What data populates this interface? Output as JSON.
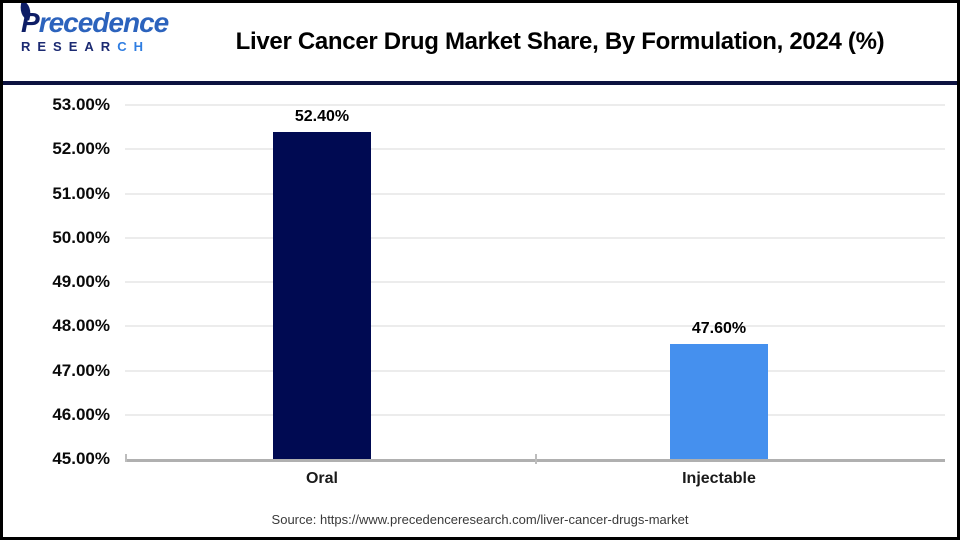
{
  "header": {
    "logo": {
      "name_initial": "P",
      "name_rest": "recedence",
      "sub_navy": "RESEAR",
      "sub_blue": "CH"
    },
    "title": "Liver Cancer Drug Market Share, By Formulation, 2024 (%)"
  },
  "chart_data": {
    "type": "bar",
    "title": "Liver Cancer Drug Market Share, By Formulation, 2024 (%)",
    "categories": [
      "Oral",
      "Injectable"
    ],
    "values": [
      52.4,
      47.6
    ],
    "value_labels": [
      "52.40%",
      "47.60%"
    ],
    "bar_colors": [
      "#000a52",
      "#4590ee"
    ],
    "xlabel": "",
    "ylabel": "",
    "ylim": [
      45,
      53
    ],
    "ytick_step": 1,
    "ytick_labels": [
      "45.00%",
      "46.00%",
      "47.00%",
      "48.00%",
      "49.00%",
      "50.00%",
      "51.00%",
      "52.00%",
      "53.00%"
    ],
    "grid": true,
    "legend": false
  },
  "footer": {
    "source": "Source: https://www.precedenceresearch.com/liver-cancer-drugs-market"
  },
  "colors": {
    "bar_oral": "#000a52",
    "bar_injectable": "#4590ee",
    "header_rule": "#0d1240",
    "gridline": "#ececec",
    "axis": "#b0b0b0",
    "logo_navy": "#0d1d66",
    "logo_blue": "#2c63bd",
    "research_blue": "#2f7de1"
  }
}
